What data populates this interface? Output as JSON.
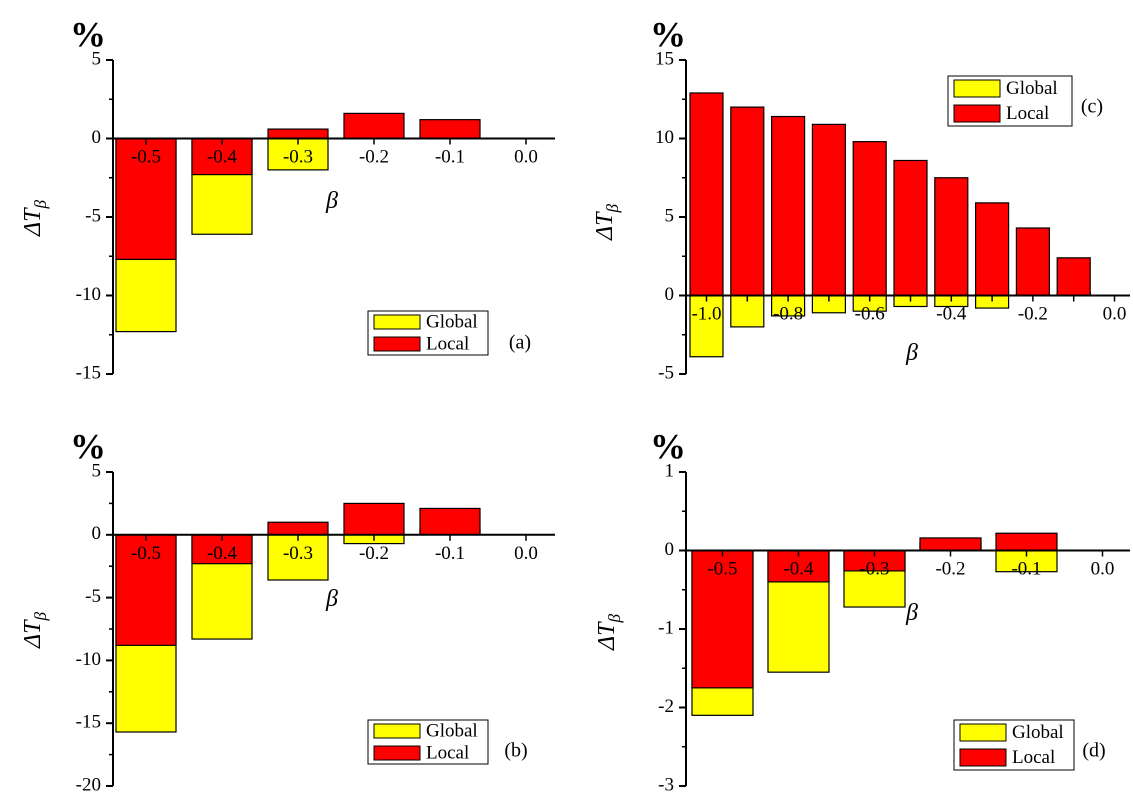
{
  "colors": {
    "global": "#ffff00",
    "local": "#ff0000",
    "stroke": "#000000"
  },
  "chart_data": [
    {
      "panel": "a",
      "type": "bar",
      "stacked": "overlay",
      "unit_label": "%",
      "ylabel": "ΔTβ",
      "xlabel": "β",
      "panel_label": "(a)",
      "ylim": [
        -15,
        5
      ],
      "yticks": [
        "-15",
        "-10",
        "-5",
        "0",
        "5"
      ],
      "categories": [
        "-0.5",
        "-0.4",
        "-0.3",
        "-0.2",
        "-0.1",
        "0.0"
      ],
      "legend_position": "bottom-right",
      "series": [
        {
          "name": "Global",
          "values": [
            -12.3,
            -6.1,
            -2.0,
            0,
            0,
            0
          ]
        },
        {
          "name": "Local",
          "values": [
            -7.7,
            -2.3,
            0.6,
            1.6,
            1.2,
            0
          ]
        }
      ]
    },
    {
      "panel": "b",
      "type": "bar",
      "stacked": "overlay",
      "unit_label": "%",
      "ylabel": "ΔTβ",
      "xlabel": "β",
      "panel_label": "(b)",
      "ylim": [
        -20,
        5
      ],
      "yticks": [
        "-20",
        "-15",
        "-10",
        "-5",
        "0",
        "5"
      ],
      "categories": [
        "-0.5",
        "-0.4",
        "-0.3",
        "-0.2",
        "-0.1",
        "0.0"
      ],
      "legend_position": "bottom-right",
      "series": [
        {
          "name": "Global",
          "values": [
            -15.7,
            -8.3,
            -3.6,
            -0.7,
            0.4,
            0
          ]
        },
        {
          "name": "Local",
          "values": [
            -8.8,
            -2.3,
            1.0,
            2.5,
            2.1,
            0
          ]
        }
      ]
    },
    {
      "panel": "c",
      "type": "bar",
      "stacked": "overlay",
      "unit_label": "%",
      "ylabel": "ΔTβ",
      "xlabel": "β",
      "panel_label": "(c)",
      "ylim": [
        -5,
        15
      ],
      "yticks": [
        "-5",
        "0",
        "5",
        "10",
        "15"
      ],
      "categories": [
        "-1.0",
        "-0.9",
        "-0.8",
        "-0.7",
        "-0.6",
        "-0.5",
        "-0.4",
        "-0.3",
        "-0.2",
        "-0.1",
        "0.0"
      ],
      "category_tick_labels": [
        "-1.0",
        "",
        "-0.8",
        "",
        "-0.6",
        "",
        "-0.4",
        "",
        "-0.2",
        "",
        "0.0"
      ],
      "legend_position": "top-right",
      "series": [
        {
          "name": "Global",
          "values": [
            -3.9,
            -2.0,
            -1.3,
            -1.1,
            -1.0,
            -0.7,
            -0.7,
            -0.8,
            0.05,
            0.2,
            0
          ]
        },
        {
          "name": "Local",
          "values": [
            12.9,
            12.0,
            11.4,
            10.9,
            9.8,
            8.6,
            7.5,
            5.9,
            4.3,
            2.4,
            0
          ]
        }
      ]
    },
    {
      "panel": "d",
      "type": "bar",
      "stacked": "overlay",
      "unit_label": "%",
      "ylabel": "ΔTβ",
      "xlabel": "β",
      "panel_label": "(d)",
      "ylim": [
        -3,
        1
      ],
      "yticks": [
        "-3",
        "-2",
        "-1",
        "0",
        "1"
      ],
      "categories": [
        "-0.5",
        "-0.4",
        "-0.3",
        "-0.2",
        "-0.1",
        "0.0"
      ],
      "legend_position": "bottom-right",
      "series": [
        {
          "name": "Global",
          "values": [
            -2.1,
            -1.55,
            -0.72,
            0.09,
            -0.27,
            0
          ]
        },
        {
          "name": "Local",
          "values": [
            -1.75,
            -0.4,
            -0.26,
            0.16,
            0.22,
            0
          ]
        }
      ]
    }
  ]
}
